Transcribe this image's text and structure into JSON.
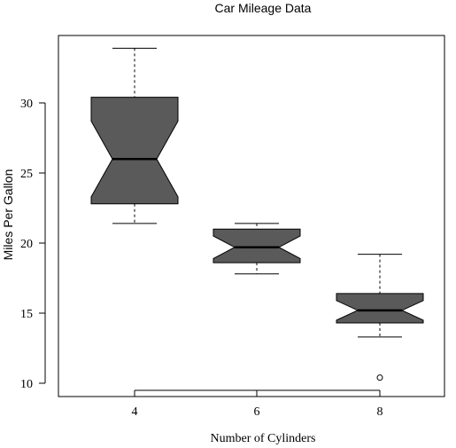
{
  "chart_data": {
    "type": "boxplot",
    "notched": true,
    "title": "Car Mileage Data",
    "xlabel": "Number of Cylinders",
    "ylabel": "Miles Per Gallon",
    "categories": [
      "4",
      "6",
      "8"
    ],
    "yticks": [
      10,
      15,
      20,
      25,
      30
    ],
    "ylim": [
      9.2,
      35.0
    ],
    "fill_color": "#5a5a5a",
    "boxes": [
      {
        "category": "4",
        "whisker_low": 21.4,
        "q1": 22.8,
        "median": 26.0,
        "q3": 30.4,
        "whisker_high": 33.9,
        "notch_low": 23.3,
        "notch_high": 28.7,
        "outliers": []
      },
      {
        "category": "6",
        "whisker_low": 17.8,
        "q1": 18.6,
        "median": 19.7,
        "q3": 21.0,
        "whisker_high": 21.4,
        "notch_low": 18.9,
        "notch_high": 20.5,
        "outliers": []
      },
      {
        "category": "8",
        "whisker_low": 13.3,
        "q1": 14.3,
        "median": 15.2,
        "q3": 16.4,
        "whisker_high": 19.2,
        "notch_low": 14.5,
        "notch_high": 15.9,
        "outliers": [
          10.4
        ]
      }
    ]
  }
}
